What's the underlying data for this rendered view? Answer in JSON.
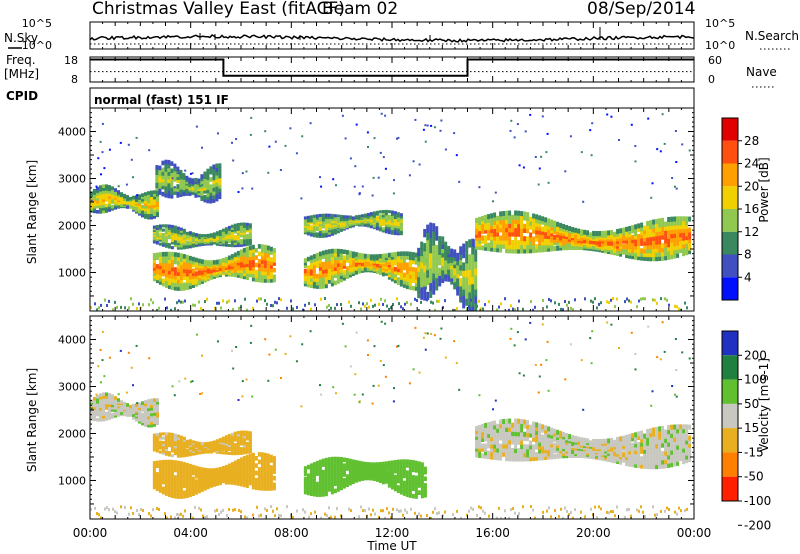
{
  "header": {
    "title": "Christmas Valley East (fitACF)",
    "beam": "Beam 02",
    "date": "08/Sep/2014"
  },
  "nsky_panel": {
    "left_label": "N.Sky",
    "right_label": "N.Search",
    "ticks": [
      "10^5",
      "10^0"
    ]
  },
  "freq_panel": {
    "left_label_1": "Freq.",
    "left_label_2": "[MHz]",
    "left_ticks": [
      "18",
      "8"
    ],
    "right_label": "Nave",
    "right_ticks": [
      "60",
      "0"
    ]
  },
  "cpid": {
    "label": "CPID",
    "program": "normal (fast) 151 IF"
  },
  "power_panel": {
    "ylabel": "Slant Range [km]",
    "cbar_label": "Power [dB]",
    "cbar_ticks": [
      "28",
      "24",
      "20",
      "16",
      "12",
      "8",
      "4"
    ],
    "cbar_colors": [
      "#e00000",
      "#ff5010",
      "#ffa000",
      "#f0d000",
      "#90c850",
      "#3a8860",
      "#4050c0",
      "#0010ff"
    ]
  },
  "velocity_panel": {
    "ylabel": "Slant Range [km]",
    "cbar_label": "Velocity [m s-1]",
    "cbar_ticks": [
      "200",
      "100",
      "50",
      "15",
      "-15",
      "-50",
      "-100",
      "-200"
    ],
    "cbar_colors": [
      "#2030c0",
      "#208040",
      "#60c030",
      "#c8c8c0",
      "#e8b020",
      "#ff8000",
      "#ff2000"
    ]
  },
  "x_axis": {
    "label": "Time UT",
    "ticks": [
      "00:00",
      "04:00",
      "08:00",
      "12:00",
      "16:00",
      "20:00",
      "00:00"
    ]
  },
  "y_axis": {
    "ticks": [
      "4000",
      "3000",
      "2000",
      "1000"
    ]
  },
  "chart_data": [
    {
      "type": "heatmap",
      "title": "Power",
      "xlabel": "Time UT",
      "ylabel": "Slant Range [km]",
      "xlim": [
        0,
        24
      ],
      "ylim": [
        180,
        4500
      ],
      "colorbar": "Power [dB]",
      "clim": [
        0,
        30
      ],
      "features": [
        {
          "t": [
            0.0,
            2.8
          ],
          "range": [
            2200,
            2800
          ],
          "level_db": 20
        },
        {
          "t": [
            2.6,
            5.3
          ],
          "range": [
            2500,
            3300
          ],
          "level_db": 16
        },
        {
          "t": [
            2.5,
            6.5
          ],
          "range": [
            1500,
            2000
          ],
          "level_db": 18
        },
        {
          "t": [
            2.5,
            7.5
          ],
          "range": [
            700,
            1500
          ],
          "level_db": 26
        },
        {
          "t": [
            8.5,
            12.5
          ],
          "range": [
            1800,
            2300
          ],
          "level_db": 18
        },
        {
          "t": [
            8.5,
            13.5
          ],
          "range": [
            700,
            1500
          ],
          "level_db": 24
        },
        {
          "t": [
            13.0,
            15.5
          ],
          "range": [
            300,
            1900
          ],
          "level_db": 16
        },
        {
          "t": [
            15.3,
            24.0
          ],
          "range": [
            1300,
            2200
          ],
          "level_db": 26
        }
      ]
    },
    {
      "type": "heatmap",
      "title": "Velocity",
      "xlabel": "Time UT",
      "ylabel": "Slant Range [km]",
      "xlim": [
        0,
        24
      ],
      "ylim": [
        180,
        4500
      ],
      "colorbar": "Velocity [m s-1]",
      "clim": [
        -200,
        200
      ],
      "features": [
        {
          "t": [
            0.0,
            2.8
          ],
          "range": [
            2200,
            2800
          ],
          "velocity": 0
        },
        {
          "t": [
            2.5,
            6.5
          ],
          "range": [
            1500,
            2000
          ],
          "velocity": -30
        },
        {
          "t": [
            2.5,
            7.5
          ],
          "range": [
            700,
            1500
          ],
          "velocity": -40
        },
        {
          "t": [
            8.5,
            13.5
          ],
          "range": [
            700,
            1500
          ],
          "velocity": 40
        },
        {
          "t": [
            15.3,
            24.0
          ],
          "range": [
            1300,
            2200
          ],
          "velocity": 0
        }
      ]
    },
    {
      "type": "line",
      "title": "N.Sky / N.Search",
      "xlim": [
        0,
        24
      ],
      "log_scale": true,
      "ylim": [
        1,
        100000
      ]
    },
    {
      "type": "line",
      "title": "Freq. / Nave",
      "xlim": [
        0,
        24
      ],
      "freq_ylim_mhz": [
        8,
        18
      ],
      "nave_ylim": [
        0,
        60
      ],
      "series": [
        {
          "name": "Freq.",
          "x": [
            0,
            5.3,
            5.3,
            15.0,
            15.0,
            24
          ],
          "y": [
            17,
            17,
            10.5,
            10.5,
            17,
            17
          ]
        },
        {
          "name": "Nave",
          "x": [
            0,
            24
          ],
          "y": [
            25,
            25
          ]
        }
      ]
    }
  ]
}
